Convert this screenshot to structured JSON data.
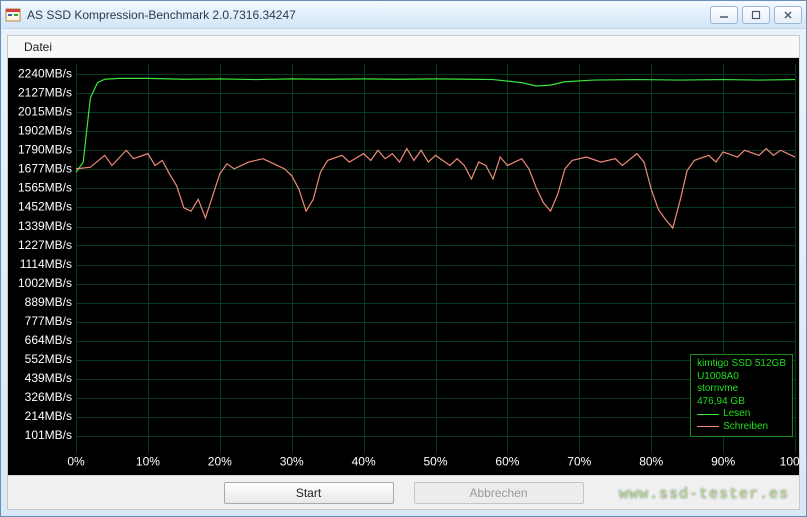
{
  "window": {
    "title": "AS SSD Kompression-Benchmark 2.0.7316.34247"
  },
  "menu": {
    "datei": "Datei"
  },
  "chart": {
    "type": "line",
    "background_color": "#000000",
    "grid_color": "#063a1e",
    "axis_text_color": "#ffffff",
    "axis_fontsize": 12,
    "y_unit": "MB/s",
    "y_ticks": [
      101,
      214,
      326,
      439,
      552,
      664,
      777,
      889,
      1002,
      1114,
      1227,
      1339,
      1452,
      1565,
      1677,
      1790,
      1902,
      2015,
      2127,
      2240
    ],
    "x_ticks_pct": [
      0,
      10,
      20,
      30,
      40,
      50,
      60,
      70,
      80,
      90,
      100
    ],
    "ylim": [
      0,
      2300
    ],
    "xlim": [
      0,
      100
    ],
    "grid_y_step": 112.5,
    "grid_x_step_pct": 10,
    "series": [
      {
        "name": "Lesen",
        "color": "#39e639",
        "line_width": 1.2,
        "points": [
          [
            0,
            1660
          ],
          [
            1,
            1720
          ],
          [
            2,
            2100
          ],
          [
            3,
            2190
          ],
          [
            4,
            2210
          ],
          [
            6,
            2215
          ],
          [
            10,
            2215
          ],
          [
            15,
            2210
          ],
          [
            20,
            2212
          ],
          [
            25,
            2208
          ],
          [
            30,
            2212
          ],
          [
            35,
            2210
          ],
          [
            40,
            2212
          ],
          [
            45,
            2210
          ],
          [
            50,
            2212
          ],
          [
            55,
            2210
          ],
          [
            58,
            2208
          ],
          [
            62,
            2190
          ],
          [
            64,
            2170
          ],
          [
            66,
            2175
          ],
          [
            68,
            2195
          ],
          [
            72,
            2205
          ],
          [
            78,
            2208
          ],
          [
            84,
            2205
          ],
          [
            90,
            2208
          ],
          [
            95,
            2205
          ],
          [
            100,
            2208
          ]
        ]
      },
      {
        "name": "Schreiben",
        "color": "#f08a7a",
        "line_width": 1.2,
        "points": [
          [
            0,
            1680
          ],
          [
            2,
            1690
          ],
          [
            4,
            1760
          ],
          [
            5,
            1700
          ],
          [
            7,
            1790
          ],
          [
            8,
            1740
          ],
          [
            10,
            1770
          ],
          [
            11,
            1700
          ],
          [
            12,
            1730
          ],
          [
            13,
            1650
          ],
          [
            14,
            1580
          ],
          [
            15,
            1450
          ],
          [
            16,
            1430
          ],
          [
            17,
            1500
          ],
          [
            18,
            1390
          ],
          [
            19,
            1520
          ],
          [
            20,
            1650
          ],
          [
            21,
            1710
          ],
          [
            22,
            1680
          ],
          [
            24,
            1720
          ],
          [
            26,
            1740
          ],
          [
            28,
            1700
          ],
          [
            29,
            1680
          ],
          [
            30,
            1640
          ],
          [
            31,
            1560
          ],
          [
            32,
            1430
          ],
          [
            33,
            1500
          ],
          [
            34,
            1660
          ],
          [
            35,
            1730
          ],
          [
            37,
            1760
          ],
          [
            38,
            1720
          ],
          [
            40,
            1770
          ],
          [
            41,
            1730
          ],
          [
            42,
            1790
          ],
          [
            43,
            1740
          ],
          [
            44,
            1770
          ],
          [
            45,
            1720
          ],
          [
            46,
            1800
          ],
          [
            47,
            1730
          ],
          [
            48,
            1790
          ],
          [
            49,
            1720
          ],
          [
            50,
            1760
          ],
          [
            52,
            1700
          ],
          [
            53,
            1740
          ],
          [
            54,
            1700
          ],
          [
            55,
            1620
          ],
          [
            56,
            1720
          ],
          [
            57,
            1700
          ],
          [
            58,
            1620
          ],
          [
            59,
            1750
          ],
          [
            60,
            1700
          ],
          [
            62,
            1740
          ],
          [
            63,
            1680
          ],
          [
            64,
            1570
          ],
          [
            65,
            1480
          ],
          [
            66,
            1430
          ],
          [
            67,
            1530
          ],
          [
            68,
            1680
          ],
          [
            69,
            1730
          ],
          [
            71,
            1750
          ],
          [
            73,
            1720
          ],
          [
            75,
            1740
          ],
          [
            76,
            1700
          ],
          [
            78,
            1770
          ],
          [
            79,
            1720
          ],
          [
            80,
            1560
          ],
          [
            81,
            1440
          ],
          [
            82,
            1380
          ],
          [
            83,
            1330
          ],
          [
            84,
            1490
          ],
          [
            85,
            1670
          ],
          [
            86,
            1730
          ],
          [
            88,
            1760
          ],
          [
            89,
            1720
          ],
          [
            90,
            1780
          ],
          [
            92,
            1750
          ],
          [
            93,
            1790
          ],
          [
            95,
            1760
          ],
          [
            96,
            1800
          ],
          [
            97,
            1760
          ],
          [
            98,
            1790
          ],
          [
            100,
            1750
          ]
        ]
      }
    ]
  },
  "legend": {
    "border_color": "#1c8a1c",
    "text_color": "#1ee01e",
    "device": "kimtigo SSD 512GB",
    "model": "U1008A0",
    "driver": "stornvme",
    "capacity": "476,94 GB",
    "read_label": "Lesen",
    "write_label": "Schreiben"
  },
  "buttons": {
    "start": "Start",
    "abort": "Abbrechen"
  },
  "watermark": "www.ssd-tester.es"
}
